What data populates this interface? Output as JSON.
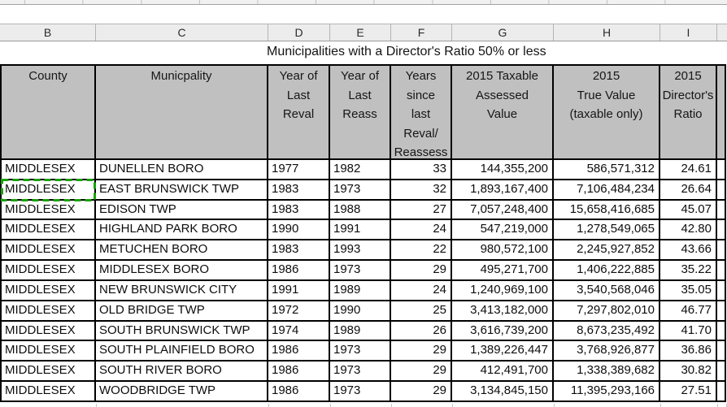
{
  "sheet": {
    "column_letters": [
      "B",
      "C",
      "D",
      "E",
      "F",
      "G",
      "H",
      "I"
    ],
    "title": "Municipalities with a Director's Ratio 50% or less"
  },
  "table": {
    "col_headers": [
      "County",
      "Municpality",
      "Year of\nLast\nReval",
      "Year of\nLast\nReass",
      "Years\nsince\nlast\nReval/\nReassess",
      "2015 Taxable\nAssessed\nValue",
      "2015\nTrue Value\n(taxable only)",
      "2015\nDirector's\nRatio"
    ],
    "rows": [
      {
        "county": "MIDDLESEX",
        "municipality": "DUNELLEN BORO",
        "year_last_reval": "1977",
        "year_last_reass": "1982",
        "years_since": "33",
        "assessed_value": "144,355,200",
        "true_value": "586,571,312",
        "ratio": "24.61"
      },
      {
        "county": "MIDDLESEX",
        "municipality": "EAST BRUNSWICK TWP",
        "year_last_reval": "1983",
        "year_last_reass": "1973",
        "years_since": "32",
        "assessed_value": "1,893,167,400",
        "true_value": "7,106,484,234",
        "ratio": "26.64"
      },
      {
        "county": "MIDDLESEX",
        "municipality": "EDISON TWP",
        "year_last_reval": "1983",
        "year_last_reass": "1988",
        "years_since": "27",
        "assessed_value": "7,057,248,400",
        "true_value": "15,658,416,685",
        "ratio": "45.07"
      },
      {
        "county": "MIDDLESEX",
        "municipality": "HIGHLAND PARK BORO",
        "year_last_reval": "1990",
        "year_last_reass": "1991",
        "years_since": "24",
        "assessed_value": "547,219,000",
        "true_value": "1,278,549,065",
        "ratio": "42.80"
      },
      {
        "county": "MIDDLESEX",
        "municipality": "METUCHEN BORO",
        "year_last_reval": "1983",
        "year_last_reass": "1993",
        "years_since": "22",
        "assessed_value": "980,572,100",
        "true_value": "2,245,927,852",
        "ratio": "43.66"
      },
      {
        "county": "MIDDLESEX",
        "municipality": "MIDDLESEX BORO",
        "year_last_reval": "1986",
        "year_last_reass": "1973",
        "years_since": "29",
        "assessed_value": "495,271,700",
        "true_value": "1,406,222,885",
        "ratio": "35.22"
      },
      {
        "county": "MIDDLESEX",
        "municipality": "NEW BRUNSWICK CITY",
        "year_last_reval": "1991",
        "year_last_reass": "1989",
        "years_since": "24",
        "assessed_value": "1,240,969,100",
        "true_value": "3,540,568,046",
        "ratio": "35.05"
      },
      {
        "county": "MIDDLESEX",
        "municipality": "OLD BRIDGE TWP",
        "year_last_reval": "1972",
        "year_last_reass": "1990",
        "years_since": "25",
        "assessed_value": "3,413,182,000",
        "true_value": "7,297,802,010",
        "ratio": "46.77"
      },
      {
        "county": "MIDDLESEX",
        "municipality": "SOUTH BRUNSWICK TWP",
        "year_last_reval": "1974",
        "year_last_reass": "1989",
        "years_since": "26",
        "assessed_value": "3,616,739,200",
        "true_value": "8,673,235,492",
        "ratio": "41.70"
      },
      {
        "county": "MIDDLESEX",
        "municipality": "SOUTH PLAINFIELD BORO",
        "year_last_reval": "1986",
        "year_last_reass": "1973",
        "years_since": "29",
        "assessed_value": "1,389,226,447",
        "true_value": "3,768,926,877",
        "ratio": "36.86"
      },
      {
        "county": "MIDDLESEX",
        "municipality": "SOUTH RIVER BORO",
        "year_last_reval": "1986",
        "year_last_reass": "1973",
        "years_since": "29",
        "assessed_value": "412,491,700",
        "true_value": "1,338,389,682",
        "ratio": "30.82"
      },
      {
        "county": "MIDDLESEX",
        "municipality": "WOODBRIDGE TWP",
        "year_last_reval": "1986",
        "year_last_reass": "1973",
        "years_since": "29",
        "assessed_value": "3,134,845,150",
        "true_value": "11,395,293,166",
        "ratio": "27.51"
      }
    ]
  },
  "selection": {
    "marquee_row_municipality": "EAST BRUNSWICK TWP",
    "marquee_column": "County"
  },
  "colors": {
    "header_bg": "#c0c0c0",
    "grid_border": "#000000",
    "marquee_green": "#18a303",
    "letter_row_bg": "#ececec"
  }
}
